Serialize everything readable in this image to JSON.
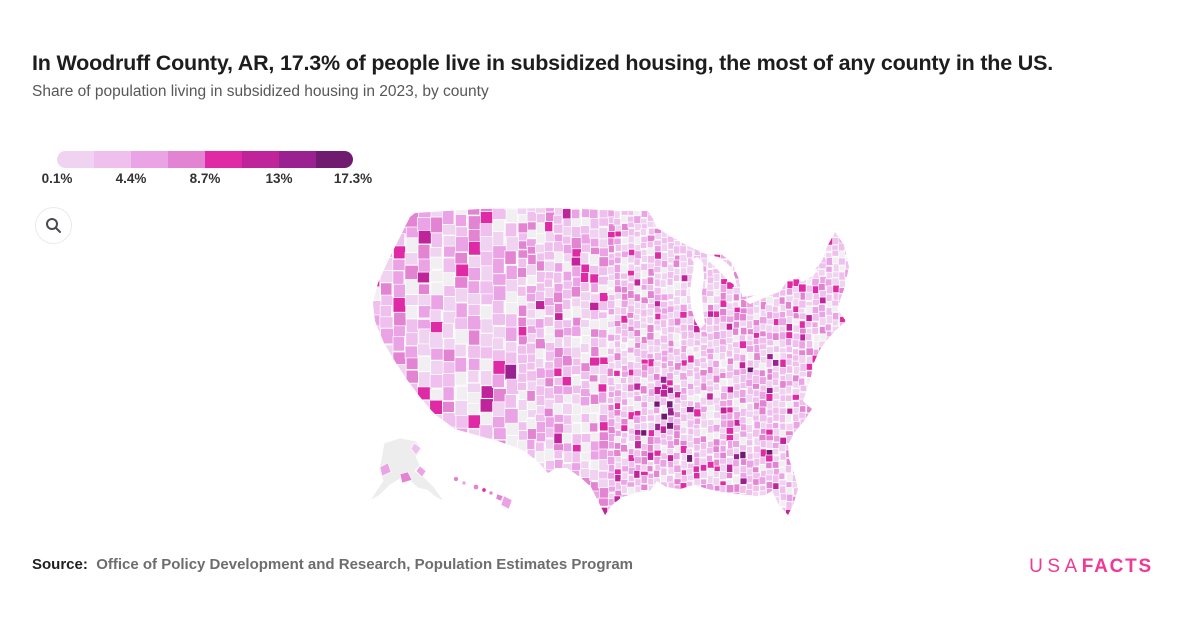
{
  "header": {
    "title": "In Woodruff County, AR, 17.3% of people live in subsidized housing, the most of any county in the US.",
    "subtitle": "Share of population living in subsidized housing in 2023, by county"
  },
  "legend": {
    "labels": [
      "0.1%",
      "4.4%",
      "8.7%",
      "13%",
      "17.3%"
    ]
  },
  "toolbar": {
    "zoom_icon": "magnifier"
  },
  "footer": {
    "source_label": "Source:",
    "source_text": "Office of Policy Development and Research, Population Estimates Program",
    "logo_part1": "USA",
    "logo_part2": "FACTS",
    "logo_color": "#f03896"
  },
  "chart_data": {
    "type": "choropleth",
    "title": "In Woodruff County, AR, 17.3% of people live in subsidized housing, the most of any county in the US.",
    "subtitle": "Share of population living in subsidized housing in 2023, by county",
    "geography": "United States counties, with Alaska and Hawaii insets",
    "year": 2023,
    "metric": "Share of population living in subsidized housing (%)",
    "scale": {
      "stops_percent": [
        0.1,
        4.4,
        8.7,
        13,
        17.3
      ],
      "colors": [
        "#f0d3f1",
        "#efc0ee",
        "#eaa3e4",
        "#e384d2",
        "#e02aa5",
        "#c0249b",
        "#9a2190",
        "#701b70"
      ],
      "no_data_color": "#f1eff1",
      "base_color": "#faf4fa",
      "alaska_fill": "#ededed"
    },
    "highlight": {
      "county": "Woodruff County, AR",
      "value_percent": 17.3,
      "note": "highest share of any US county",
      "cluster_region": "Mississippi Delta (eastern Arkansas)"
    },
    "legend_position": "top-left",
    "min_percent": 0.1,
    "max_percent": 17.3
  }
}
